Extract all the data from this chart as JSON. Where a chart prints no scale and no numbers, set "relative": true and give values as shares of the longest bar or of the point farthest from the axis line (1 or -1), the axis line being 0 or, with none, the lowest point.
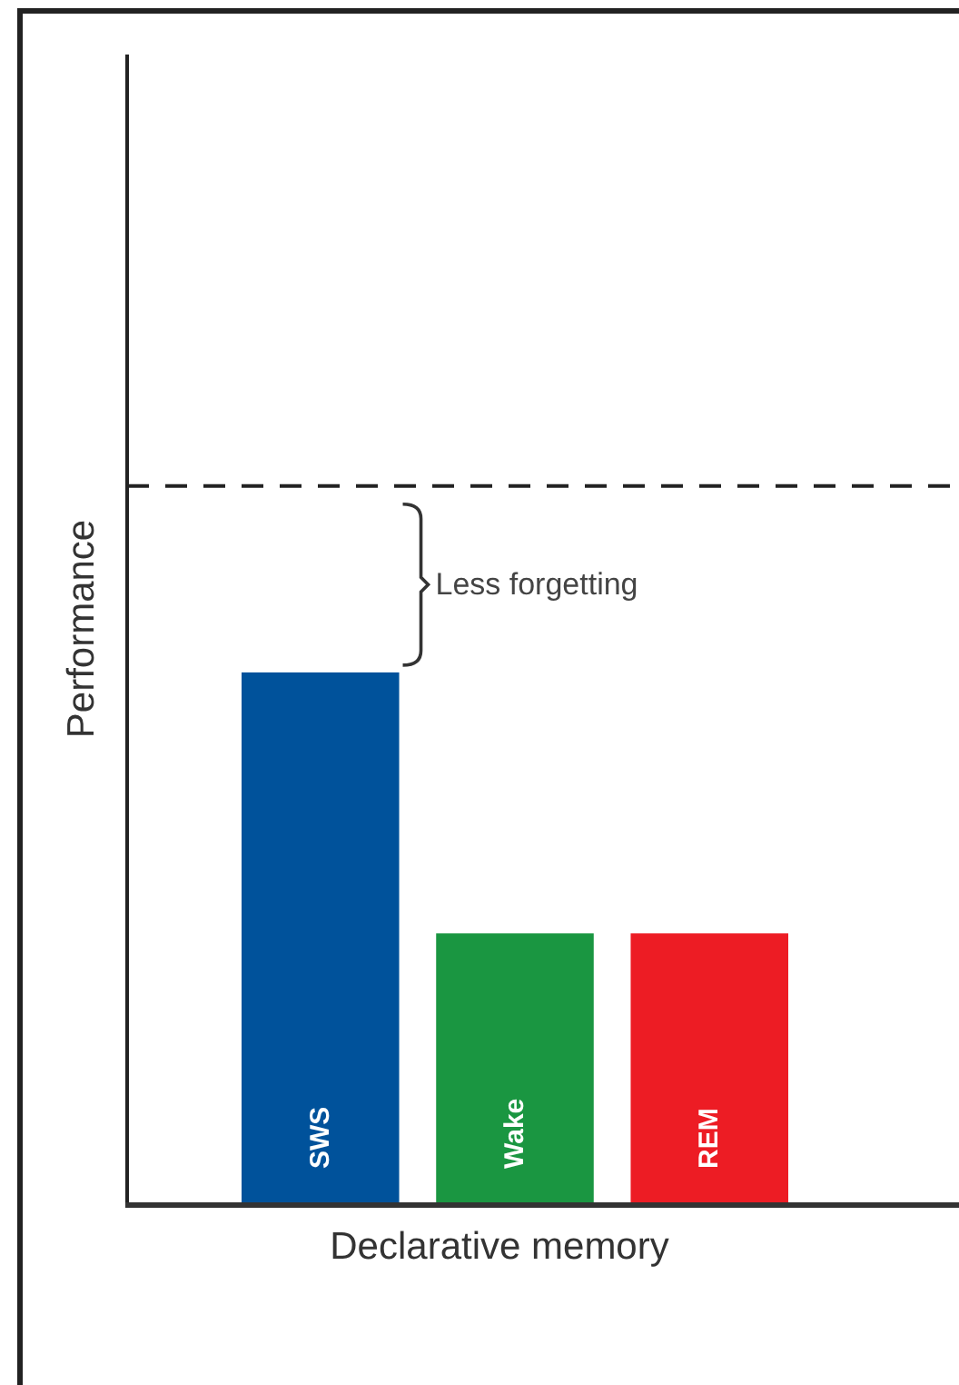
{
  "chart_data": {
    "type": "bar",
    "relative": true,
    "xlabel": "Declarative memory",
    "ylabel": "Performance",
    "categories": [
      "SWS",
      "Wake",
      "REM"
    ],
    "values": [
      1,
      0.51,
      0.51
    ],
    "colors": [
      "#00529b",
      "#1a9641",
      "#ed1c24"
    ],
    "ref_lines": [
      {
        "axis": "y",
        "value": 1.35,
        "line_style": "dashed",
        "color": "#222222"
      }
    ],
    "annotations": [
      "Less forgetting"
    ]
  }
}
